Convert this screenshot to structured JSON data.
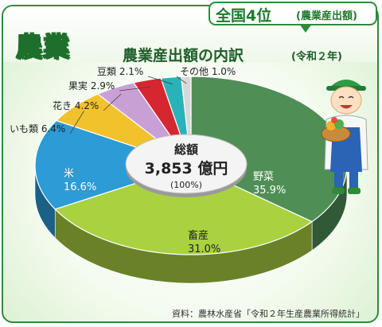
{
  "header": {
    "category": "農業",
    "title": "農業産出額の内訳",
    "subtitle": "(令和２年)",
    "rank_main": "全国4位",
    "rank_sub": "(農業産出額)"
  },
  "center": {
    "label": "総額",
    "total": "3,853 億円",
    "percent": "(100%)"
  },
  "source": "資料：農林水産省「令和２年生産農業所得統計」",
  "chart_data": {
    "type": "pie",
    "unit": "%",
    "categories": [
      "野菜",
      "畜産",
      "米",
      "いも類",
      "花き",
      "果実",
      "豆類",
      "その他"
    ],
    "values": [
      35.9,
      31.0,
      16.6,
      6.4,
      4.2,
      2.9,
      2.1,
      1.0
    ],
    "labels": [
      "35.9%",
      "31.0%",
      "16.6%",
      "6.4%",
      "4.2%",
      "2.9%",
      "2.1%",
      "1.0%"
    ],
    "colors": [
      "#4f8f56",
      "#a9d140",
      "#2c9bd6",
      "#f2c22c",
      "#c9a0d6",
      "#d6262f",
      "#29b3b8",
      "#d8d8d8"
    ]
  }
}
